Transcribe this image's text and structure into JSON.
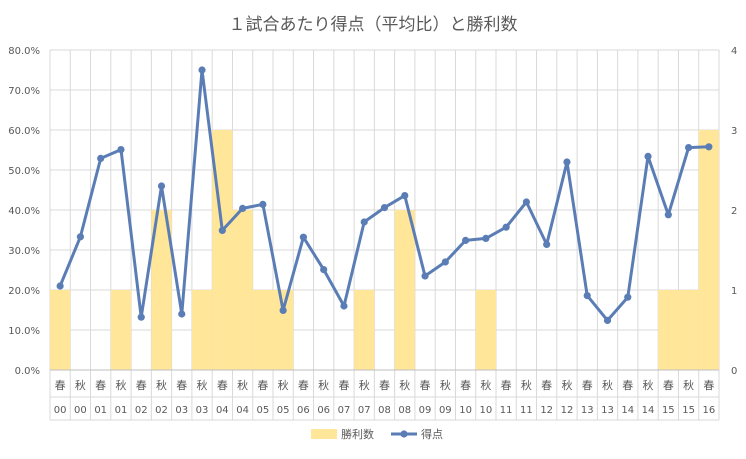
{
  "chart_data": {
    "type": "bar+line",
    "title": "１試合あたり得点（平均比）と勝利数",
    "categories": {
      "season": [
        "春",
        "秋",
        "春",
        "秋",
        "春",
        "秋",
        "春",
        "秋",
        "春",
        "秋",
        "春",
        "秋",
        "春",
        "秋",
        "春",
        "秋",
        "春",
        "秋",
        "春",
        "秋",
        "春",
        "秋",
        "春",
        "秋",
        "春",
        "秋",
        "春",
        "秋",
        "春",
        "秋",
        "春",
        "秋",
        "春"
      ],
      "year": [
        "00",
        "00",
        "01",
        "01",
        "02",
        "02",
        "03",
        "03",
        "04",
        "04",
        "05",
        "05",
        "06",
        "06",
        "07",
        "07",
        "08",
        "08",
        "09",
        "09",
        "10",
        "10",
        "11",
        "11",
        "12",
        "12",
        "13",
        "13",
        "14",
        "14",
        "15",
        "15",
        "16"
      ]
    },
    "series": [
      {
        "name": "勝利数",
        "type": "bar",
        "axis": "right",
        "color": "#FFE699",
        "values": [
          1,
          0,
          0,
          1,
          0,
          2,
          0,
          1,
          3,
          2,
          1,
          1,
          0,
          0,
          0,
          1,
          0,
          2,
          0,
          0,
          0,
          1,
          0,
          0,
          0,
          0,
          0,
          0,
          0,
          0,
          1,
          1,
          3
        ]
      },
      {
        "name": "得点",
        "type": "line",
        "axis": "left",
        "color": "#5B7DB5",
        "values": [
          21.0,
          33.3,
          52.9,
          55.1,
          13.2,
          46.0,
          14.0,
          75.0,
          34.9,
          40.4,
          41.4,
          14.9,
          33.2,
          25.1,
          16.0,
          37.0,
          40.6,
          43.6,
          23.5,
          27.0,
          32.4,
          32.9,
          35.7,
          42.0,
          31.4,
          52.0,
          18.6,
          12.4,
          18.2,
          53.4,
          38.8,
          55.6,
          55.8
        ]
      }
    ],
    "y_left": {
      "min": 0,
      "max": 80,
      "step": 10,
      "format": "percent",
      "ticks": [
        "0.0%",
        "10.0%",
        "20.0%",
        "30.0%",
        "40.0%",
        "50.0%",
        "60.0%",
        "70.0%",
        "80.0%"
      ]
    },
    "y_right": {
      "min": 0,
      "max": 4,
      "step": 1,
      "ticks": [
        "0",
        "1",
        "2",
        "3",
        "4"
      ]
    },
    "grid": true,
    "legend_position": "bottom"
  }
}
